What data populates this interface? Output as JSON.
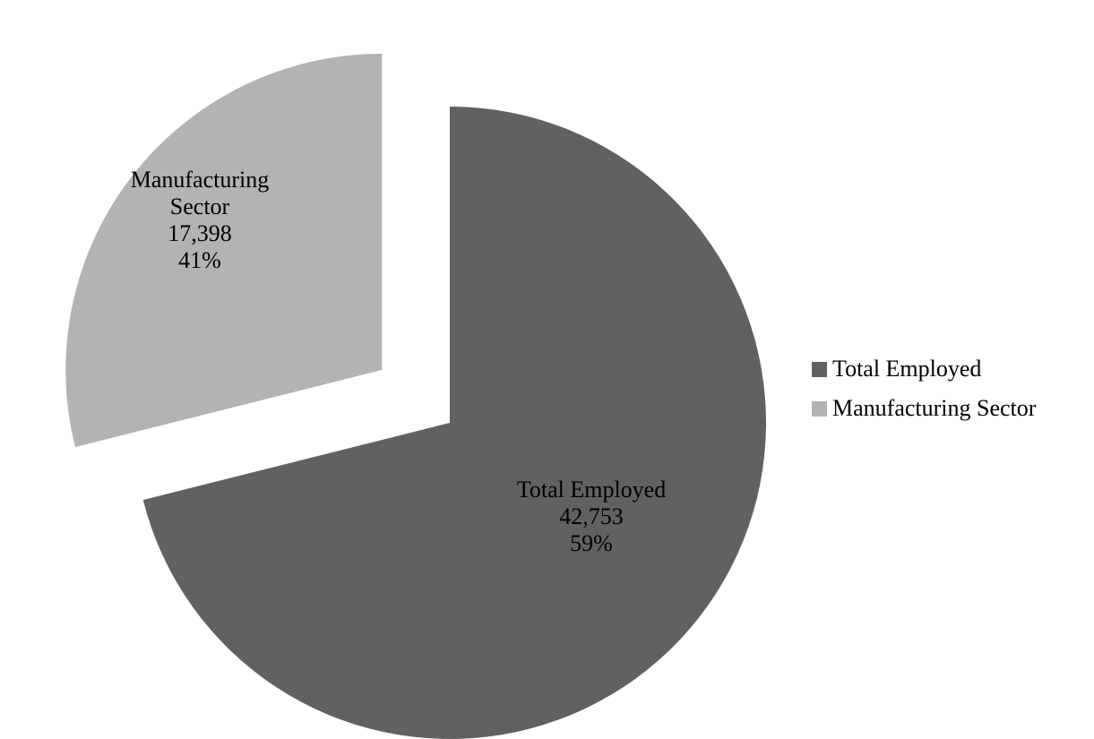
{
  "chart_data": {
    "type": "pie",
    "slices": [
      {
        "name": "Total Employed",
        "value": 42753,
        "value_label": "42,753",
        "percent_label": "59%",
        "color": "#616161",
        "exploded": false
      },
      {
        "name": "Manufacturing Sector",
        "value": 17398,
        "value_label": "17,398",
        "percent_label": "41%",
        "color": "#b3b3b3",
        "exploded": true
      }
    ],
    "legend": {
      "position": "right",
      "items": [
        "Total Employed",
        "Manufacturing Sector"
      ]
    }
  },
  "labels": {
    "total_employed": {
      "line1": "Total Employed",
      "value": "42,753",
      "percent": "59%"
    },
    "manufacturing": {
      "line1": "Manufacturing",
      "line2": "Sector",
      "value": "17,398",
      "percent": "41%"
    }
  }
}
